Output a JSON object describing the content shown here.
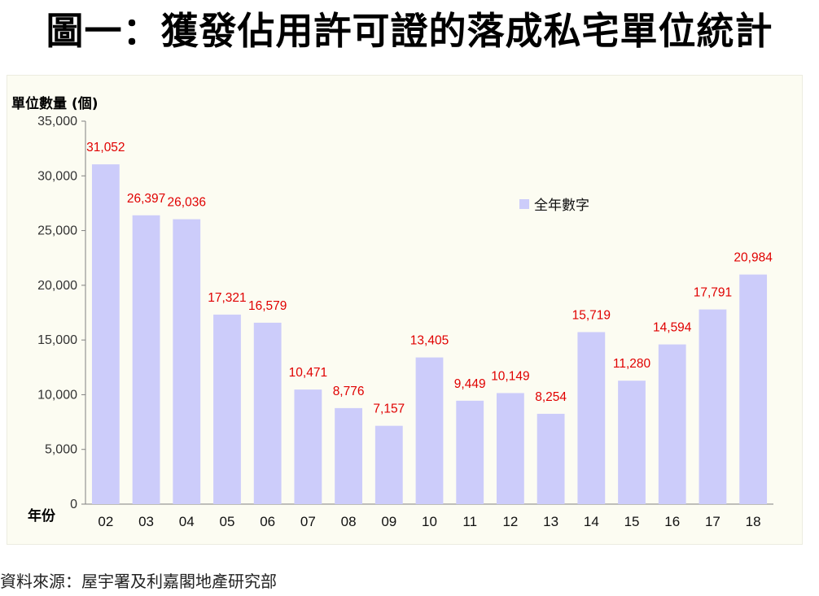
{
  "title": "圖一：獲發佔用許可證的落成私宅單位統計",
  "source": "資料來源：屋宇署及利嘉閣地產研究部",
  "chart_data": {
    "type": "bar",
    "ylabel": "單位數量 (個)",
    "xlabel": "年份",
    "categories": [
      "02",
      "03",
      "04",
      "05",
      "06",
      "07",
      "08",
      "09",
      "10",
      "11",
      "12",
      "13",
      "14",
      "15",
      "16",
      "17",
      "18"
    ],
    "series": [
      {
        "name": "全年數字",
        "values": [
          31052,
          26397,
          26036,
          17321,
          16579,
          10471,
          8776,
          7157,
          13405,
          9449,
          10149,
          8254,
          15719,
          11280,
          14594,
          17791,
          20984
        ],
        "labels": [
          "31,052",
          "26,397",
          "26,036",
          "17,321",
          "16,579",
          "10,471",
          "8,776",
          "7,157",
          "13,405",
          "9,449",
          "10,149",
          "8,254",
          "15,719",
          "11,280",
          "14,594",
          "17,791",
          "20,984"
        ]
      }
    ],
    "ylim": [
      0,
      35000
    ],
    "yticks": [
      0,
      5000,
      10000,
      15000,
      20000,
      25000,
      30000,
      35000
    ],
    "ytick_labels": [
      "0",
      "5,000",
      "10,000",
      "15,000",
      "20,000",
      "25,000",
      "30,000",
      "35,000"
    ],
    "grid": false,
    "legend_position": "top-right",
    "bar_color": "#ccccfa",
    "label_color": "#e00000"
  }
}
